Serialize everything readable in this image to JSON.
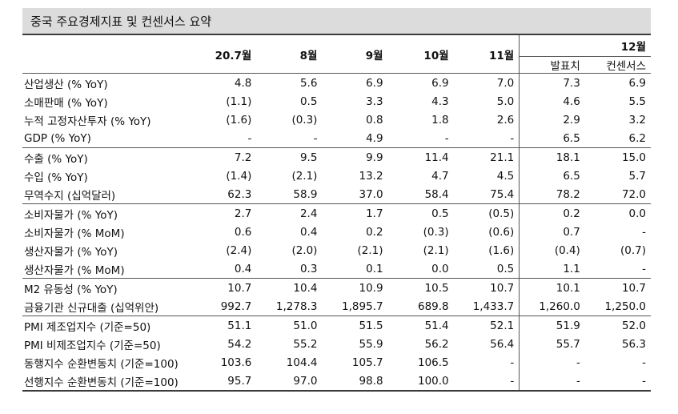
{
  "title": "중국 주요경제지표 및 컨센서스 요약",
  "columns": {
    "months": [
      "20.7월",
      "8월",
      "9월",
      "10월",
      "11월"
    ],
    "dec_label": "12월",
    "dec_sub": [
      "발표치",
      "컨센서스"
    ]
  },
  "rows": [
    {
      "label": "산업생산 (% YoY)",
      "values": [
        "4.8",
        "5.6",
        "6.9",
        "6.9",
        "7.0",
        "7.3",
        "6.9"
      ]
    },
    {
      "label": "소매판매 (% YoY)",
      "values": [
        "(1.1)",
        "0.5",
        "3.3",
        "4.3",
        "5.0",
        "4.6",
        "5.5"
      ]
    },
    {
      "label": "누적 고정자산투자 (% YoY)",
      "values": [
        "(1.6)",
        "(0.3)",
        "0.8",
        "1.8",
        "2.6",
        "2.9",
        "3.2"
      ]
    },
    {
      "label": "GDP (% YoY)",
      "values": [
        "-",
        "-",
        "4.9",
        "-",
        "-",
        "6.5",
        "6.2"
      ]
    },
    {
      "label": "수출 (% YoY)",
      "values": [
        "7.2",
        "9.5",
        "9.9",
        "11.4",
        "21.1",
        "18.1",
        "15.0"
      ]
    },
    {
      "label": "수입 (% YoY)",
      "values": [
        "(1.4)",
        "(2.1)",
        "13.2",
        "4.7",
        "4.5",
        "6.5",
        "5.7"
      ]
    },
    {
      "label": "무역수지 (십억달러)",
      "values": [
        "62.3",
        "58.9",
        "37.0",
        "58.4",
        "75.4",
        "78.2",
        "72.0"
      ]
    },
    {
      "label": "소비자물가 (% YoY)",
      "values": [
        "2.7",
        "2.4",
        "1.7",
        "0.5",
        "(0.5)",
        "0.2",
        "0.0"
      ]
    },
    {
      "label": "소비자물가 (% MoM)",
      "values": [
        "0.6",
        "0.4",
        "0.2",
        "(0.3)",
        "(0.6)",
        "0.7",
        "-"
      ]
    },
    {
      "label": "생산자물가 (% YoY)",
      "values": [
        "(2.4)",
        "(2.0)",
        "(2.1)",
        "(2.1)",
        "(1.6)",
        "(0.4)",
        "(0.7)"
      ]
    },
    {
      "label": "생산자물가 (% MoM)",
      "values": [
        "0.4",
        "0.3",
        "0.1",
        "0.0",
        "0.5",
        "1.1",
        "-"
      ]
    },
    {
      "label": "M2 유동성 (% YoY)",
      "values": [
        "10.7",
        "10.4",
        "10.9",
        "10.5",
        "10.7",
        "10.1",
        "10.7"
      ]
    },
    {
      "label": "금융기관 신규대출 (십억위안)",
      "values": [
        "992.7",
        "1,278.3",
        "1,895.7",
        "689.8",
        "1,433.7",
        "1,260.0",
        "1,250.0"
      ]
    },
    {
      "label": "PMI 제조업지수 (기준=50)",
      "values": [
        "51.1",
        "51.0",
        "51.5",
        "51.4",
        "52.1",
        "51.9",
        "52.0"
      ]
    },
    {
      "label": "PMI 비제조업지수 (기준=50)",
      "values": [
        "54.2",
        "55.2",
        "55.9",
        "56.2",
        "56.4",
        "55.7",
        "56.3"
      ]
    },
    {
      "label": "동행지수 순환변동치 (기준=100)",
      "values": [
        "103.6",
        "104.4",
        "105.7",
        "106.5",
        "-",
        "-",
        "-"
      ]
    },
    {
      "label": "선행지수 순환변동치 (기준=100)",
      "values": [
        "95.7",
        "97.0",
        "98.8",
        "100.0",
        "-",
        "-",
        "-"
      ]
    }
  ]
}
